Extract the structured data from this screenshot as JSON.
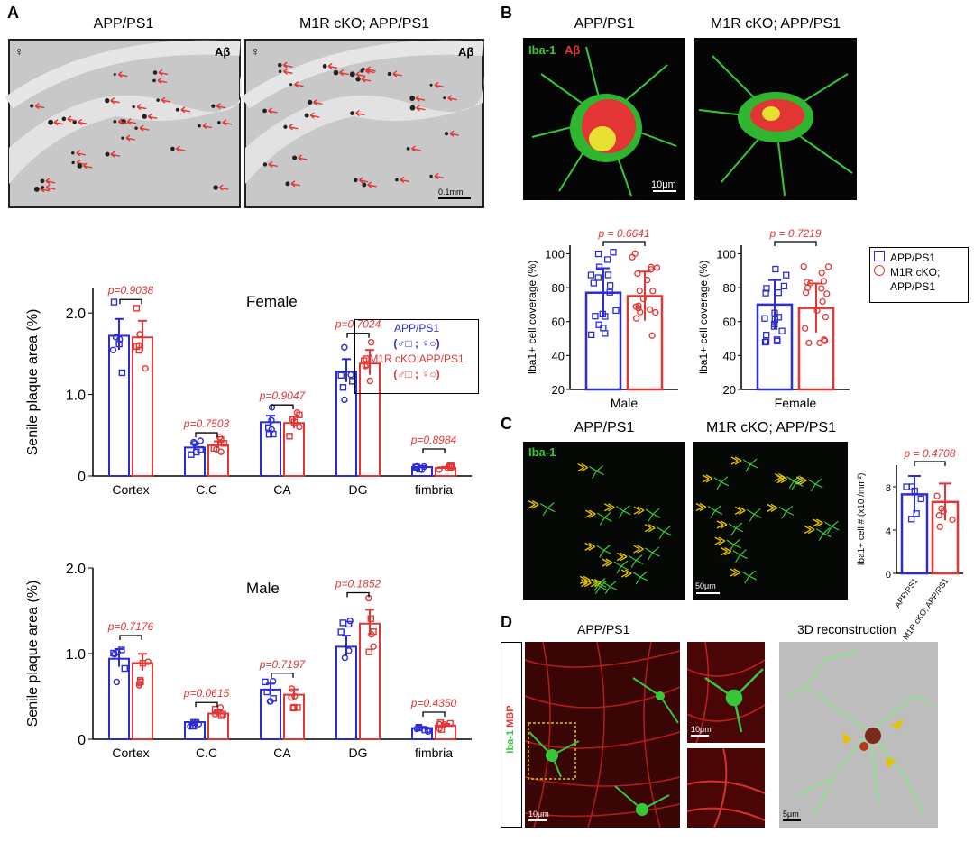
{
  "panels": {
    "a": "A",
    "b": "B",
    "c": "C",
    "d": "D"
  },
  "colors": {
    "blue": "#2b2bd8",
    "red": "#e43535",
    "green": "#37c837",
    "yellow": "#e6c200"
  },
  "panelA": {
    "img_left_title": "APP/PS1",
    "img_right_title": "M1R cKO; APP/PS1",
    "female_symbol": "♀",
    "ab_label": "Aβ",
    "scale_label": "0.1mm",
    "legend": {
      "line1": "APP/PS1",
      "line2": "(♂□ ; ♀○)",
      "line3": "M1R cKO;APP/PS1",
      "line4": "(♂□ ; ♀○)"
    }
  },
  "panelB": {
    "img_left_title": "APP/PS1",
    "img_right_title": "M1R cKO; APP/PS1",
    "stain_green": "Iba-1",
    "stain_red": "Aβ",
    "scale_label": "10μm",
    "legend": {
      "item1": "APP/PS1",
      "item2_line1": "M1R cKO;",
      "item2_line2": "APP/PS1"
    }
  },
  "panelC": {
    "img_left_title": "APP/PS1",
    "img_right_title": "M1R cKO; APP/PS1",
    "stain_green": "Iba-1",
    "scale_label": "50μm"
  },
  "panelD": {
    "title": "APP/PS1",
    "recon_title": "3D reconstruction",
    "stain_green": "Iba-1",
    "stain_red": "MBP",
    "scale1": "10μm",
    "scale2": "10μm",
    "scale3": "5μm"
  },
  "chart_data": [
    {
      "id": "female",
      "type": "bar",
      "title": "Female",
      "ylabel": "Senile plaque area (%)",
      "ylim": [
        0,
        2.3
      ],
      "yticks": [
        "0",
        "1.0",
        "2.0"
      ],
      "categories": [
        "Cortex",
        "C.C",
        "CA",
        "DG",
        "fimbria"
      ],
      "series": [
        {
          "name": "APP/PS1",
          "values": [
            1.72,
            0.35,
            0.66,
            1.28,
            0.11
          ]
        },
        {
          "name": "M1R cKO;APP/PS1",
          "values": [
            1.7,
            0.38,
            0.65,
            1.38,
            0.1
          ]
        }
      ],
      "pvalues": [
        "p=0.9038",
        "p=0.7503",
        "p=0.9047",
        "p=0.7024",
        "p=0.8984"
      ]
    },
    {
      "id": "male",
      "type": "bar",
      "title": "Male",
      "ylabel": "Senile plaque area (%)",
      "ylim": [
        0,
        2.0
      ],
      "yticks": [
        "0",
        "1.0",
        "2.0"
      ],
      "categories": [
        "Cortex",
        "C.C",
        "CA",
        "DG",
        "fimbria"
      ],
      "series": [
        {
          "name": "APP/PS1",
          "values": [
            0.94,
            0.2,
            0.58,
            1.08,
            0.13
          ]
        },
        {
          "name": "M1R cKO;APP/PS1",
          "values": [
            0.89,
            0.3,
            0.52,
            1.35,
            0.16
          ]
        }
      ],
      "pvalues": [
        "p=0.7176",
        "p=0.0615",
        "p=0.7197",
        "p=0.1852",
        "p=0.4350"
      ]
    },
    {
      "id": "b-male",
      "type": "bar",
      "xlabel": "Male",
      "ylabel": "Iba1+ cell coverage (%)",
      "ylim": [
        20,
        105
      ],
      "yticks": [
        "20",
        "40",
        "60",
        "80",
        "100"
      ],
      "categories": [
        "APP/PS1",
        "M1R cKO;APP/PS1"
      ],
      "values": [
        77,
        75
      ],
      "pvalue": "p = 0.6641"
    },
    {
      "id": "b-female",
      "type": "bar",
      "xlabel": "Female",
      "ylabel": "Iba1+ cell coverage (%)",
      "ylim": [
        20,
        105
      ],
      "yticks": [
        "20",
        "40",
        "60",
        "80",
        "100"
      ],
      "categories": [
        "APP/PS1",
        "M1R cKO;APP/PS1"
      ],
      "values": [
        70,
        68
      ],
      "pvalue": "p = 0.7219"
    },
    {
      "id": "c",
      "type": "bar",
      "ylabel": "Iba1+ cell # (x10 /mm²)",
      "ylim": [
        0,
        10
      ],
      "yticks": [
        "0",
        "4",
        "8"
      ],
      "categories": [
        "APP/PS1",
        "M1R cKO; APP/PS1"
      ],
      "values": [
        7.3,
        6.6
      ],
      "pvalue": "p = 0.4708"
    }
  ]
}
